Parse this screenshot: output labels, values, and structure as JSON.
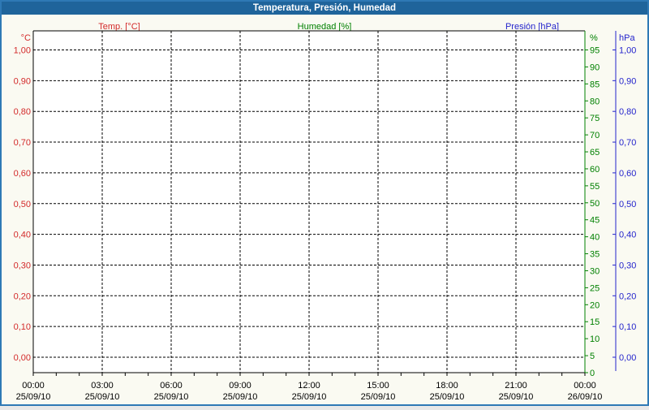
{
  "window": {
    "title": "Temperatura, Presión, Humedad"
  },
  "colors": {
    "titlebar": "#1F649B",
    "titlebar_text": "#FFFFFF",
    "frame": "#2E79B5",
    "window_bg": "#FAFAF2",
    "plot_bg": "#FFFFFF",
    "grid": "#000000",
    "temp": "#D32A2A",
    "humidity": "#008000",
    "pressure": "#2424CC",
    "x_labels": "#000000"
  },
  "chart_data": {
    "type": "line",
    "title": "Temperatura, Presión, Humedad",
    "grid": "dashed",
    "legend_position": "top",
    "x_axis": {
      "time_range": "25/09/10 00:00 to 26/09/10 00:00",
      "major_tick_interval_hours": 3,
      "minor_tick_interval_hours": 1,
      "ticks": [
        {
          "time": "00:00",
          "date": "25/09/10"
        },
        {
          "time": "03:00",
          "date": "25/09/10"
        },
        {
          "time": "06:00",
          "date": "25/09/10"
        },
        {
          "time": "09:00",
          "date": "25/09/10"
        },
        {
          "time": "12:00",
          "date": "25/09/10"
        },
        {
          "time": "15:00",
          "date": "25/09/10"
        },
        {
          "time": "18:00",
          "date": "25/09/10"
        },
        {
          "time": "21:00",
          "date": "25/09/10"
        },
        {
          "time": "00:00",
          "date": "26/09/10"
        }
      ]
    },
    "y_axes": [
      {
        "id": "temperature",
        "unit": "°C",
        "side": "left",
        "color": "#D32A2A",
        "range": [
          0,
          1
        ],
        "tick_step": 0.1,
        "labels": [
          "1,00",
          "0,90",
          "0,80",
          "0,70",
          "0,60",
          "0,50",
          "0,40",
          "0,30",
          "0,20",
          "0,10",
          "0,00"
        ]
      },
      {
        "id": "humidity",
        "unit": "%",
        "side": "right",
        "color": "#008000",
        "range": [
          0,
          100
        ],
        "tick_step": 5,
        "labels": [
          "95",
          "90",
          "85",
          "80",
          "75",
          "70",
          "65",
          "60",
          "55",
          "50",
          "45",
          "40",
          "35",
          "30",
          "25",
          "20",
          "15",
          "10",
          "5",
          "0"
        ]
      },
      {
        "id": "pressure",
        "unit": "hPa",
        "side": "right-outer",
        "color": "#2424CC",
        "range": [
          0,
          1
        ],
        "tick_step": 0.1,
        "labels": [
          "1,00",
          "0,90",
          "0,80",
          "0,70",
          "0,60",
          "0,50",
          "0,40",
          "0,30",
          "0,20",
          "0,10",
          "0,00"
        ]
      }
    ],
    "series": [
      {
        "name": "Temp. [°C]",
        "axis": "temperature",
        "color": "#D32A2A",
        "points": []
      },
      {
        "name": "Humedad [%]",
        "axis": "humidity",
        "color": "#008000",
        "points": []
      },
      {
        "name": "Presión [hPa]",
        "axis": "pressure",
        "color": "#2424CC",
        "points": []
      }
    ]
  }
}
